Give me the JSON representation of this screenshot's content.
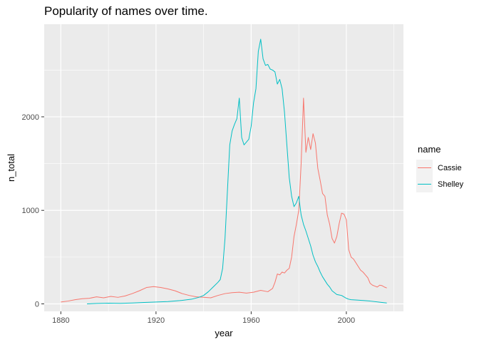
{
  "chart_data": {
    "type": "line",
    "title": "Popularity of names over time.",
    "xlabel": "year",
    "ylabel": "n_total",
    "xlim": [
      1873,
      2024
    ],
    "ylim": [
      -80,
      2990
    ],
    "x_ticks": [
      1880,
      1920,
      1960,
      2000
    ],
    "y_ticks": [
      0,
      1000,
      2000
    ],
    "grid": true,
    "panel_background": "#ebebeb",
    "grid_color": "#ffffff",
    "legend": {
      "title": "name",
      "position": "right"
    },
    "series": [
      {
        "name": "Cassie",
        "color": "#F8766D",
        "points": [
          [
            1880,
            20
          ],
          [
            1883,
            30
          ],
          [
            1886,
            45
          ],
          [
            1889,
            55
          ],
          [
            1892,
            60
          ],
          [
            1895,
            75
          ],
          [
            1898,
            65
          ],
          [
            1901,
            80
          ],
          [
            1904,
            70
          ],
          [
            1907,
            85
          ],
          [
            1910,
            110
          ],
          [
            1913,
            140
          ],
          [
            1916,
            175
          ],
          [
            1919,
            185
          ],
          [
            1922,
            175
          ],
          [
            1925,
            160
          ],
          [
            1928,
            140
          ],
          [
            1931,
            110
          ],
          [
            1934,
            90
          ],
          [
            1937,
            75
          ],
          [
            1940,
            70
          ],
          [
            1943,
            65
          ],
          [
            1946,
            90
          ],
          [
            1949,
            110
          ],
          [
            1952,
            120
          ],
          [
            1955,
            125
          ],
          [
            1958,
            115
          ],
          [
            1961,
            125
          ],
          [
            1964,
            145
          ],
          [
            1967,
            130
          ],
          [
            1969,
            165
          ],
          [
            1970,
            230
          ],
          [
            1971,
            320
          ],
          [
            1972,
            310
          ],
          [
            1973,
            340
          ],
          [
            1974,
            330
          ],
          [
            1975,
            360
          ],
          [
            1976,
            380
          ],
          [
            1977,
            500
          ],
          [
            1978,
            720
          ],
          [
            1979,
            850
          ],
          [
            1980,
            1000
          ],
          [
            1981,
            1500
          ],
          [
            1982,
            2200
          ],
          [
            1983,
            1620
          ],
          [
            1984,
            1780
          ],
          [
            1985,
            1650
          ],
          [
            1986,
            1820
          ],
          [
            1987,
            1720
          ],
          [
            1988,
            1450
          ],
          [
            1989,
            1320
          ],
          [
            1990,
            1180
          ],
          [
            1991,
            1150
          ],
          [
            1992,
            950
          ],
          [
            1993,
            850
          ],
          [
            1994,
            700
          ],
          [
            1995,
            650
          ],
          [
            1996,
            720
          ],
          [
            1997,
            860
          ],
          [
            1998,
            970
          ],
          [
            1999,
            960
          ],
          [
            2000,
            900
          ],
          [
            2001,
            580
          ],
          [
            2002,
            500
          ],
          [
            2003,
            480
          ],
          [
            2004,
            440
          ],
          [
            2005,
            400
          ],
          [
            2006,
            360
          ],
          [
            2007,
            340
          ],
          [
            2008,
            310
          ],
          [
            2009,
            280
          ],
          [
            2010,
            220
          ],
          [
            2011,
            200
          ],
          [
            2012,
            190
          ],
          [
            2013,
            180
          ],
          [
            2014,
            200
          ],
          [
            2015,
            195
          ],
          [
            2016,
            180
          ],
          [
            2017,
            170
          ]
        ]
      },
      {
        "name": "Shelley",
        "color": "#00BFC4",
        "points": [
          [
            1891,
            0
          ],
          [
            1895,
            5
          ],
          [
            1900,
            8
          ],
          [
            1905,
            6
          ],
          [
            1910,
            10
          ],
          [
            1915,
            15
          ],
          [
            1920,
            20
          ],
          [
            1925,
            25
          ],
          [
            1930,
            35
          ],
          [
            1935,
            50
          ],
          [
            1938,
            70
          ],
          [
            1940,
            90
          ],
          [
            1942,
            130
          ],
          [
            1944,
            180
          ],
          [
            1946,
            230
          ],
          [
            1947,
            260
          ],
          [
            1948,
            380
          ],
          [
            1949,
            700
          ],
          [
            1950,
            1200
          ],
          [
            1951,
            1700
          ],
          [
            1952,
            1850
          ],
          [
            1953,
            1920
          ],
          [
            1954,
            1980
          ],
          [
            1955,
            2200
          ],
          [
            1956,
            1780
          ],
          [
            1957,
            1700
          ],
          [
            1958,
            1730
          ],
          [
            1959,
            1760
          ],
          [
            1960,
            1900
          ],
          [
            1961,
            2150
          ],
          [
            1962,
            2300
          ],
          [
            1963,
            2700
          ],
          [
            1964,
            2830
          ],
          [
            1965,
            2620
          ],
          [
            1966,
            2550
          ],
          [
            1967,
            2560
          ],
          [
            1968,
            2510
          ],
          [
            1969,
            2500
          ],
          [
            1970,
            2480
          ],
          [
            1971,
            2350
          ],
          [
            1972,
            2400
          ],
          [
            1973,
            2300
          ],
          [
            1974,
            2050
          ],
          [
            1975,
            1700
          ],
          [
            1976,
            1350
          ],
          [
            1977,
            1150
          ],
          [
            1978,
            1040
          ],
          [
            1979,
            1080
          ],
          [
            1980,
            1150
          ],
          [
            1981,
            950
          ],
          [
            1982,
            850
          ],
          [
            1983,
            780
          ],
          [
            1984,
            700
          ],
          [
            1985,
            620
          ],
          [
            1986,
            520
          ],
          [
            1987,
            450
          ],
          [
            1988,
            400
          ],
          [
            1989,
            340
          ],
          [
            1990,
            290
          ],
          [
            1991,
            250
          ],
          [
            1992,
            210
          ],
          [
            1993,
            180
          ],
          [
            1994,
            140
          ],
          [
            1995,
            120
          ],
          [
            1996,
            100
          ],
          [
            1997,
            95
          ],
          [
            1998,
            90
          ],
          [
            1999,
            75
          ],
          [
            2000,
            60
          ],
          [
            2001,
            50
          ],
          [
            2002,
            45
          ],
          [
            2005,
            40
          ],
          [
            2010,
            30
          ],
          [
            2015,
            15
          ],
          [
            2017,
            10
          ]
        ]
      }
    ]
  }
}
